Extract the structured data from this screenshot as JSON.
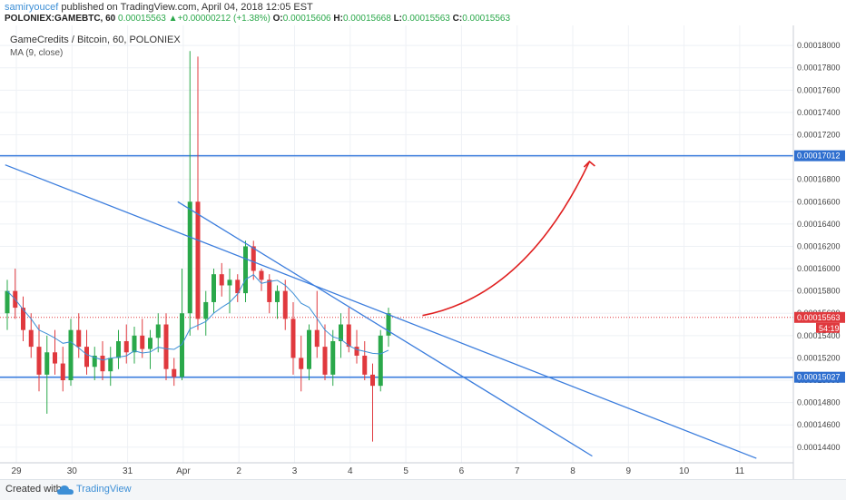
{
  "header": {
    "author": "samiryoucef",
    "published_text": " published on TradingView.com, April 04, 2018 12:05 EST",
    "symbol": "POLONIEX:GAMEBTC, 60",
    "last": "0.00015563",
    "change": "+0.00000212 (+1.38%)",
    "open_label": "O:",
    "open": "0.00015606",
    "high_label": "H:",
    "high": "0.00015668",
    "low_label": "L:",
    "low": "0.00015563",
    "close_label": "C:",
    "close": "0.00015563"
  },
  "legend": {
    "title": "GameCredits / Bitcoin, 60, POLONIEX",
    "indicator": "MA (9, close)"
  },
  "footer": {
    "created": "Created with",
    "brand": "TradingView"
  },
  "colors": {
    "up": "#2aa84a",
    "down": "#e0393e",
    "ma": "#3d8fd6",
    "trend": "#3b7ddd",
    "arrow": "#e02020",
    "price_tag": "#e0393e",
    "hline_tag": "#2f6fcf"
  },
  "chart_data": {
    "type": "candlestick",
    "title": "GameCredits / Bitcoin, 60, POLONIEX",
    "x_labels": [
      "29",
      "30",
      "31",
      "Apr",
      "2",
      "3",
      "4",
      "5",
      "6",
      "7",
      "8",
      "9",
      "10",
      "11"
    ],
    "y_ticks": [
      "0.00018000",
      "0.00017800",
      "0.00017600",
      "0.00017400",
      "0.00017200",
      "0.00017000",
      "0.00016800",
      "0.00016600",
      "0.00016400",
      "0.00016200",
      "0.00016000",
      "0.00015800",
      "0.00015600",
      "0.00015400",
      "0.00015200",
      "0.00015000",
      "0.00014800",
      "0.00014600",
      "0.00014400"
    ],
    "ylim": [
      0.0001426,
      0.0001818
    ],
    "xlim": [
      28.8,
      11.5
    ],
    "grid": true,
    "last_price": {
      "value": 0.00015563,
      "label": "0.00015563",
      "countdown": "54:19"
    },
    "horizontal_lines": [
      {
        "value": 0.00017012,
        "label": "0.00017012"
      },
      {
        "value": 0.00015027,
        "label": "0.00015027"
      }
    ],
    "trend_lines": [
      {
        "x1": 28.8,
        "y1": 0.0001693,
        "x2": 11.3,
        "y2": 0.000143
      },
      {
        "x1": 0.9,
        "y1": 0.000166,
        "x2": 8.35,
        "y2": 0.0001432
      }
    ],
    "projection_arrow": {
      "x1": 5.3,
      "y1": 0.0001558,
      "x2": 8.3,
      "y2": 0.0001696
    },
    "candles": [
      [
        0.000156,
        0.000159,
        0.0001545,
        0.000158
      ],
      [
        0.000158,
        0.00016,
        0.0001555,
        0.0001565
      ],
      [
        0.0001565,
        0.0001575,
        0.0001535,
        0.0001545
      ],
      [
        0.0001545,
        0.000156,
        0.000152,
        0.000153
      ],
      [
        0.000153,
        0.000155,
        0.000149,
        0.0001505
      ],
      [
        0.0001505,
        0.000154,
        0.000147,
        0.0001525
      ],
      [
        0.0001525,
        0.0001545,
        0.0001505,
        0.0001515
      ],
      [
        0.0001515,
        0.000153,
        0.000149,
        0.00015
      ],
      [
        0.00015,
        0.0001555,
        0.0001495,
        0.0001545
      ],
      [
        0.0001545,
        0.000156,
        0.000152,
        0.000153
      ],
      [
        0.000153,
        0.0001545,
        0.0001505,
        0.0001512
      ],
      [
        0.0001512,
        0.000153,
        0.00015,
        0.0001522
      ],
      [
        0.0001522,
        0.0001535,
        0.00015,
        0.0001508
      ],
      [
        0.0001508,
        0.000153,
        0.0001495,
        0.000152
      ],
      [
        0.000152,
        0.0001545,
        0.000151,
        0.0001535
      ],
      [
        0.0001535,
        0.000155,
        0.0001515,
        0.0001525
      ],
      [
        0.0001525,
        0.0001548,
        0.0001515,
        0.000154
      ],
      [
        0.000154,
        0.0001555,
        0.000152,
        0.0001528
      ],
      [
        0.0001528,
        0.0001545,
        0.000151,
        0.0001538
      ],
      [
        0.0001538,
        0.000156,
        0.0001525,
        0.000155
      ],
      [
        0.000155,
        0.000156,
        0.00015,
        0.000151
      ],
      [
        0.000151,
        0.000152,
        0.0001495,
        0.0001503
      ],
      [
        0.0001503,
        0.00016,
        0.00015,
        0.000156
      ],
      [
        0.000156,
        0.0001795,
        0.000154,
        0.000166
      ],
      [
        0.000166,
        0.000179,
        0.0001545,
        0.0001555
      ],
      [
        0.0001555,
        0.000158,
        0.000154,
        0.000157
      ],
      [
        0.000157,
        0.00016,
        0.000156,
        0.0001595
      ],
      [
        0.0001595,
        0.0001605,
        0.0001575,
        0.0001585
      ],
      [
        0.0001585,
        0.00016,
        0.000156,
        0.000159
      ],
      [
        0.000159,
        0.0001595,
        0.000157,
        0.0001578
      ],
      [
        0.0001578,
        0.0001625,
        0.000157,
        0.000162
      ],
      [
        0.000162,
        0.0001625,
        0.000159,
        0.0001598
      ],
      [
        0.0001598,
        0.00016,
        0.000158,
        0.000159
      ],
      [
        0.000159,
        0.0001595,
        0.000156,
        0.000157
      ],
      [
        0.000157,
        0.0001585,
        0.0001555,
        0.000158
      ],
      [
        0.000158,
        0.000159,
        0.0001545,
        0.0001555
      ],
      [
        0.0001555,
        0.000157,
        0.0001505,
        0.000152
      ],
      [
        0.000152,
        0.000154,
        0.000149,
        0.000151
      ],
      [
        0.000151,
        0.000155,
        0.00015,
        0.0001545
      ],
      [
        0.0001545,
        0.000158,
        0.000152,
        0.000153
      ],
      [
        0.000153,
        0.000155,
        0.00015,
        0.0001505
      ],
      [
        0.0001505,
        0.0001545,
        0.0001495,
        0.0001535
      ],
      [
        0.0001535,
        0.000156,
        0.000152,
        0.000155
      ],
      [
        0.000155,
        0.0001565,
        0.0001525,
        0.000153
      ],
      [
        0.000153,
        0.0001545,
        0.0001515,
        0.0001522
      ],
      [
        0.0001522,
        0.0001535,
        0.00015,
        0.0001505
      ],
      [
        0.0001505,
        0.0001515,
        0.0001445,
        0.0001495
      ],
      [
        0.0001495,
        0.0001545,
        0.000149,
        0.000154
      ],
      [
        0.000154,
        0.0001565,
        0.000153,
        0.000156
      ]
    ]
  }
}
